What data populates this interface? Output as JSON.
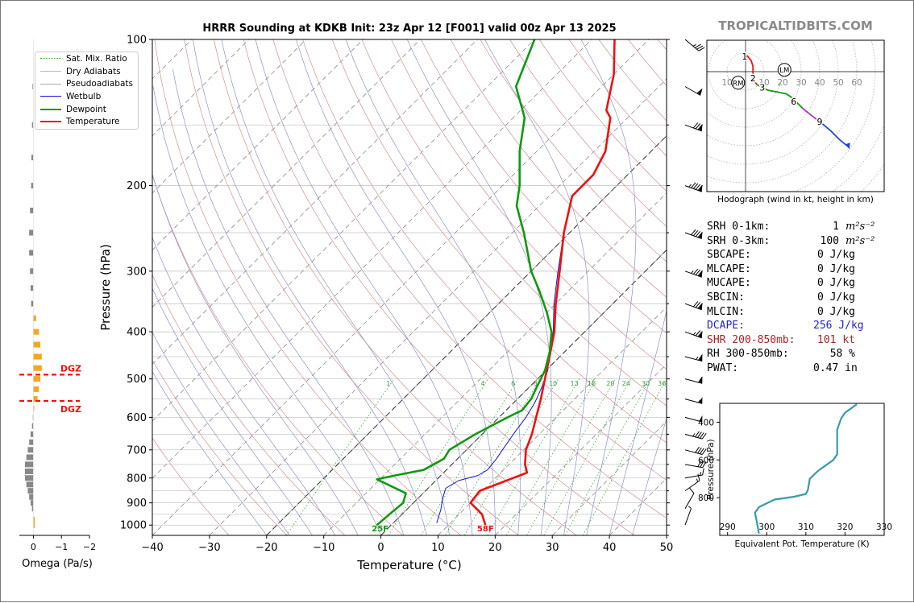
{
  "title": "HRRR Sounding at KDKB Init: 23z Apr 12 [F001] valid 00z Apr 13 2025",
  "brand": "TROPICALTIDBITS.COM",
  "colors": {
    "temperature": "#ee1111",
    "dewpoint": "#119911",
    "wetbulb": "#1111dd",
    "dry_adiabat": "#d09090",
    "pseudoadiabat": "#9090c8",
    "mixing_ratio": "#33aa33",
    "isotherm": "#888888",
    "dgz": "#ee1111",
    "omega_up": "#f5a623",
    "omega_down": "#888888",
    "hodo_seg1": "#ee1111",
    "hodo_seg2": "#119911",
    "hodo_seg3": "#aa33cc",
    "hodo_seg4": "#2244ee",
    "theta_e": "#3a9aaa",
    "dcape": "#2222cc",
    "shr": "#aa2222"
  },
  "chart_data": [
    {
      "id": "skewt",
      "type": "line",
      "xlabel": "Temperature (°C)",
      "ylabel": "Pressure (hPa)",
      "xlim": [
        -40,
        50
      ],
      "ylim": [
        1050,
        100
      ],
      "y_scale": "log",
      "x_ticks": [
        -40,
        -30,
        -20,
        -10,
        0,
        10,
        20,
        30,
        40,
        50
      ],
      "x_tick_labels": [
        "−40",
        "−30",
        "−20",
        "−10",
        "0",
        "10",
        "20",
        "30",
        "40",
        "50"
      ],
      "y_ticks": [
        100,
        200,
        300,
        400,
        500,
        600,
        700,
        800,
        900,
        1000
      ],
      "legend": [
        "Sat. Mix. Ratio",
        "Dry Adiabats",
        "Pseudoadiabats",
        "Wetbulb",
        "Dewpoint",
        "Temperature"
      ],
      "legend_position": "outside-left",
      "mixing_ratio_labels": [
        "1",
        "4",
        "6",
        "8",
        "10",
        "13",
        "16",
        "20",
        "24",
        "30",
        "36"
      ],
      "mixing_ratio_values": [
        1,
        4,
        6,
        8,
        10,
        13,
        16,
        20,
        24,
        30,
        36
      ],
      "surface_temp_label": "58F",
      "surface_dewpoint_label": "25F",
      "series": [
        {
          "name": "Temperature",
          "points": [
            [
              16.5,
              1000
            ],
            [
              14,
              950
            ],
            [
              10,
              900
            ],
            [
              9.5,
              850
            ],
            [
              12,
              815
            ],
            [
              14.6,
              780
            ],
            [
              12.8,
              750
            ],
            [
              10.4,
              700
            ],
            [
              8.7,
              650
            ],
            [
              6.5,
              600
            ],
            [
              4.1,
              550
            ],
            [
              1.3,
              500
            ],
            [
              -1.8,
              450
            ],
            [
              -5.3,
              400
            ],
            [
              -10,
              350
            ],
            [
              -15,
              300
            ],
            [
              -21,
              250
            ],
            [
              -26,
              210
            ],
            [
              -26,
              190
            ],
            [
              -28,
              170
            ],
            [
              -33,
              145
            ],
            [
              -35,
              140
            ],
            [
              -40,
              118
            ],
            [
              -46,
              100
            ]
          ]
        },
        {
          "name": "Dewpoint",
          "points": [
            [
              -2.5,
              1000
            ],
            [
              -2.2,
              950
            ],
            [
              -1.8,
              900
            ],
            [
              -3,
              860
            ],
            [
              -10.5,
              805
            ],
            [
              -8,
              790
            ],
            [
              -4,
              770
            ],
            [
              -2.4,
              730
            ],
            [
              -3,
              700
            ],
            [
              -1.2,
              650
            ],
            [
              1.5,
              600
            ],
            [
              2.8,
              580
            ],
            [
              2.4,
              550
            ],
            [
              1.3,
              520
            ],
            [
              -0.2,
              480
            ],
            [
              -2.6,
              440
            ],
            [
              -5.8,
              400
            ],
            [
              -10,
              365
            ],
            [
              -15,
              330
            ],
            [
              -20,
              300
            ],
            [
              -28,
              250
            ],
            [
              -34,
              220
            ],
            [
              -37,
              200
            ],
            [
              -43,
              170
            ],
            [
              -48,
              145
            ],
            [
              -55,
              125
            ],
            [
              -60,
              100
            ]
          ]
        },
        {
          "name": "Wetbulb",
          "points": [
            [
              7.6,
              990
            ],
            [
              6,
              930
            ],
            [
              4.3,
              880
            ],
            [
              3.1,
              840
            ],
            [
              4,
              810
            ],
            [
              6.5,
              790
            ],
            [
              7.2,
              770
            ],
            [
              6.8,
              730
            ],
            [
              6.3,
              700
            ],
            [
              5.3,
              640
            ],
            [
              4.7,
              600
            ],
            [
              3.7,
              560
            ],
            [
              2.2,
              520
            ],
            [
              0.3,
              480
            ],
            [
              -2,
              450
            ],
            [
              -5.5,
              400
            ],
            [
              -10.3,
              350
            ],
            [
              -15.3,
              300
            ],
            [
              -21,
              250
            ],
            [
              -26,
              210
            ],
            [
              -26,
              190
            ],
            [
              -28,
              170
            ],
            [
              -33,
              145
            ],
            [
              -35,
              140
            ],
            [
              -40,
              118
            ],
            [
              -46,
              100
            ]
          ]
        }
      ],
      "wind_barbs_kt": [
        {
          "p": 1000,
          "spd": 5,
          "dir": 200
        },
        {
          "p": 925,
          "spd": 10,
          "dir": 210
        },
        {
          "p": 850,
          "spd": 15,
          "dir": 235
        },
        {
          "p": 800,
          "spd": 15,
          "dir": 260
        },
        {
          "p": 750,
          "spd": 30,
          "dir": 280
        },
        {
          "p": 700,
          "spd": 40,
          "dir": 285
        },
        {
          "p": 650,
          "spd": 45,
          "dir": 285
        },
        {
          "p": 600,
          "spd": 50,
          "dir": 285
        },
        {
          "p": 550,
          "spd": 55,
          "dir": 285
        },
        {
          "p": 500,
          "spd": 60,
          "dir": 285
        },
        {
          "p": 450,
          "spd": 65,
          "dir": 285
        },
        {
          "p": 400,
          "spd": 75,
          "dir": 290
        },
        {
          "p": 350,
          "spd": 80,
          "dir": 290
        },
        {
          "p": 300,
          "spd": 85,
          "dir": 290
        },
        {
          "p": 250,
          "spd": 90,
          "dir": 290
        },
        {
          "p": 200,
          "spd": 95,
          "dir": 290
        },
        {
          "p": 150,
          "spd": 80,
          "dir": 290
        },
        {
          "p": 125,
          "spd": 60,
          "dir": 300
        },
        {
          "p": 100,
          "spd": 35,
          "dir": 310
        }
      ]
    },
    {
      "id": "omega",
      "type": "bar",
      "xlabel": "Omega (Pa/s)",
      "xlim": [
        0.5,
        -2
      ],
      "x_ticks": [
        0,
        -1,
        -2
      ],
      "x_tick_labels": [
        "0",
        "−1",
        "−2"
      ],
      "dgz_label": "DGZ",
      "dgz_bounds_hpa": [
        490,
        555
      ],
      "values": [
        {
          "p": 1000,
          "w": -0.05
        },
        {
          "p": 975,
          "w": -0.05
        },
        {
          "p": 925,
          "w": 0.05
        },
        {
          "p": 900,
          "w": 0.1
        },
        {
          "p": 875,
          "w": 0.15
        },
        {
          "p": 850,
          "w": 0.2
        },
        {
          "p": 825,
          "w": 0.25
        },
        {
          "p": 800,
          "w": 0.3
        },
        {
          "p": 775,
          "w": 0.3
        },
        {
          "p": 750,
          "w": 0.3
        },
        {
          "p": 725,
          "w": 0.25
        },
        {
          "p": 700,
          "w": 0.2
        },
        {
          "p": 675,
          "w": 0.15
        },
        {
          "p": 650,
          "w": 0.1
        },
        {
          "p": 625,
          "w": 0.05
        },
        {
          "p": 600,
          "w": 0.02
        },
        {
          "p": 575,
          "w": -0.03
        },
        {
          "p": 550,
          "w": -0.15
        },
        {
          "p": 525,
          "w": -0.2
        },
        {
          "p": 500,
          "w": -0.25
        },
        {
          "p": 475,
          "w": -0.3
        },
        {
          "p": 450,
          "w": -0.3
        },
        {
          "p": 425,
          "w": -0.25
        },
        {
          "p": 400,
          "w": -0.2
        },
        {
          "p": 375,
          "w": -0.1
        },
        {
          "p": 350,
          "w": 0.08
        },
        {
          "p": 325,
          "w": 0.1
        },
        {
          "p": 300,
          "w": 0.12
        },
        {
          "p": 275,
          "w": 0.15
        },
        {
          "p": 250,
          "w": 0.15
        },
        {
          "p": 225,
          "w": 0.12
        },
        {
          "p": 200,
          "w": 0.08
        },
        {
          "p": 175,
          "w": 0.07
        },
        {
          "p": 150,
          "w": 0.05
        },
        {
          "p": 125,
          "w": 0.03
        }
      ]
    },
    {
      "id": "hodograph",
      "type": "line",
      "caption": "Hodograph (wind in kt, height in km)",
      "ring_labels": [
        "10",
        "10",
        "20",
        "30",
        "40",
        "50",
        "60"
      ],
      "ring_values": [
        -10,
        10,
        20,
        30,
        40,
        50,
        60
      ],
      "storm_motion_labels": [
        "LM",
        "RM"
      ],
      "storm_motion_uv": [
        [
          21,
          1
        ],
        [
          -4,
          -6
        ]
      ],
      "height_labels": [
        "1",
        "2",
        "3",
        "6",
        "9"
      ],
      "height_points_uv": [
        [
          -0.5,
          8.2
        ],
        [
          4,
          -3.5
        ],
        [
          9,
          -8.5
        ],
        [
          26,
          -16
        ],
        [
          40,
          -27
        ]
      ],
      "path_uv": [
        [
          -1,
          6
        ],
        [
          -1,
          8
        ],
        [
          1,
          8.5
        ],
        [
          3,
          6
        ],
        [
          4,
          3
        ],
        [
          4,
          0
        ],
        [
          4,
          -3.5
        ],
        [
          6,
          -7
        ],
        [
          9,
          -8.5
        ],
        [
          12,
          -10
        ],
        [
          17,
          -11
        ],
        [
          22,
          -12
        ],
        [
          25,
          -14
        ],
        [
          27,
          -16
        ],
        [
          31,
          -20
        ],
        [
          36,
          -24
        ],
        [
          40,
          -27
        ],
        [
          46,
          -32
        ],
        [
          51,
          -37
        ],
        [
          56,
          -41
        ]
      ],
      "segments": [
        [
          0,
          7
        ],
        [
          7,
          14
        ],
        [
          14,
          16
        ],
        [
          16,
          20
        ]
      ]
    },
    {
      "id": "theta_e",
      "type": "line",
      "xlabel": "Equivalent Pot. Temperature (K)",
      "ylabel": "Pressure (hPa)",
      "xlim": [
        288,
        330
      ],
      "ylim": [
        1000,
        300
      ],
      "x_ticks": [
        290,
        300,
        310,
        320,
        330
      ],
      "y_ticks": [
        400,
        600,
        800
      ],
      "points": [
        [
          298,
          990
        ],
        [
          297.5,
          930
        ],
        [
          297,
          880
        ],
        [
          298,
          850
        ],
        [
          302,
          810
        ],
        [
          307,
          795
        ],
        [
          310,
          780
        ],
        [
          310.5,
          760
        ],
        [
          311,
          700
        ],
        [
          313,
          660
        ],
        [
          315,
          630
        ],
        [
          317,
          600
        ],
        [
          318,
          570
        ],
        [
          318,
          530
        ],
        [
          318,
          480
        ],
        [
          318,
          440
        ],
        [
          318.5,
          410
        ],
        [
          319,
          380
        ],
        [
          320,
          350
        ],
        [
          322,
          320
        ],
        [
          323,
          305
        ]
      ]
    }
  ],
  "stats": [
    {
      "label": "SRH 0-1km:",
      "value": "1",
      "unit": "m²s⁻²",
      "color": "#000000"
    },
    {
      "label": "SRH 0-3km:",
      "value": "100",
      "unit": "m²s⁻²",
      "color": "#000000"
    },
    {
      "label": "SBCAPE:",
      "value": "0 J/kg",
      "unit": "",
      "color": "#000000"
    },
    {
      "label": "MLCAPE:",
      "value": "0 J/kg",
      "unit": "",
      "color": "#000000"
    },
    {
      "label": "MUCAPE:",
      "value": "0 J/kg",
      "unit": "",
      "color": "#000000"
    },
    {
      "label": "SBCIN:",
      "value": "0 J/kg",
      "unit": "",
      "color": "#000000"
    },
    {
      "label": "MLCIN:",
      "value": "0 J/kg",
      "unit": "",
      "color": "#000000"
    },
    {
      "label": "DCAPE:",
      "value": "256 J/kg",
      "unit": "",
      "color": "#2222cc"
    },
    {
      "label": "SHR 200-850mb:",
      "value": "101 kt",
      "unit": "",
      "color": "#aa2222"
    },
    {
      "label": "RH 300-850mb:",
      "value": "58 %",
      "unit": "",
      "color": "#000000"
    },
    {
      "label": "PWAT:",
      "value": "0.47 in",
      "unit": "",
      "color": "#000000"
    }
  ]
}
